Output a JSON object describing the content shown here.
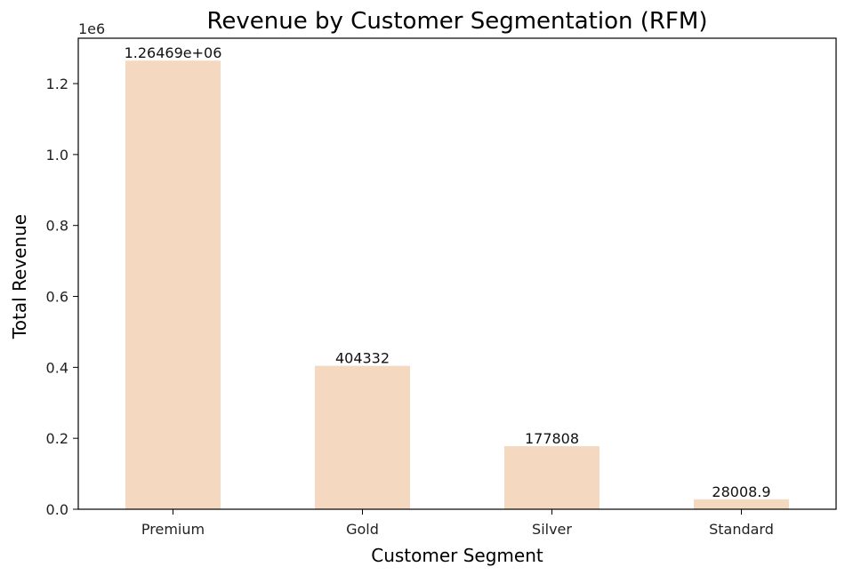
{
  "chart_data": {
    "type": "bar",
    "title": "Revenue by Customer Segmentation (RFM)",
    "xlabel": "Customer Segment",
    "ylabel": "Total Revenue",
    "y_offset_label": "1e6",
    "categories": [
      "Premium",
      "Gold",
      "Silver",
      "Standard"
    ],
    "values": [
      1264690,
      404332,
      177808,
      28008.9
    ],
    "data_labels": [
      "1.26469e+06",
      "404332",
      "177808",
      "28008.9"
    ],
    "ylim": [
      0,
      1327924
    ],
    "y_ticks": [
      0,
      200000,
      400000,
      600000,
      800000,
      1000000,
      1200000
    ],
    "y_tick_labels": [
      "0.0",
      "0.2",
      "0.4",
      "0.6",
      "0.8",
      "1.0",
      "1.2"
    ],
    "grid": false,
    "bar_color": "#f5d8c0"
  }
}
